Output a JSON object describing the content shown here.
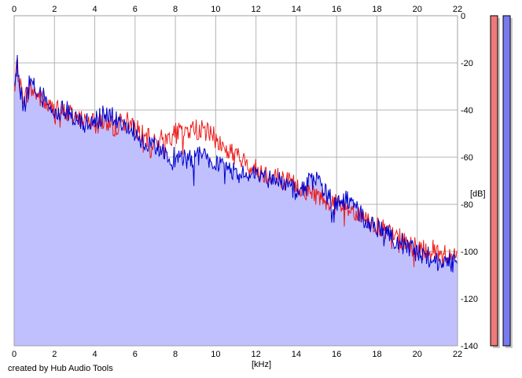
{
  "chart_data": {
    "type": "area",
    "xlabel": "[kHz]",
    "ylabel": "[dB]",
    "xlim": [
      0,
      22
    ],
    "ylim": [
      -140,
      0
    ],
    "x_ticks": [
      "0",
      "2",
      "4",
      "6",
      "8",
      "10",
      "12",
      "14",
      "16",
      "18",
      "20",
      "22"
    ],
    "y_ticks": [
      "0",
      "-20",
      "-40",
      "-60",
      "-80",
      "-100",
      "-120",
      "-140"
    ],
    "grid": true,
    "fill_series": "blue",
    "series": [
      {
        "color": "#ee1c1c",
        "x": [
          0,
          0.15,
          0.3,
          0.5,
          0.8,
          1.2,
          1.6,
          2.0,
          2.5,
          3.0,
          3.5,
          4.0,
          4.5,
          5.0,
          5.5,
          6.0,
          6.5,
          7.0,
          7.5,
          8.0,
          8.5,
          9.0,
          9.5,
          10.0,
          10.5,
          11.0,
          11.5,
          12.0,
          12.5,
          13.0,
          13.5,
          14.0,
          14.5,
          15.0,
          15.5,
          16.0,
          16.5,
          17.0,
          17.5,
          18.0,
          18.5,
          19.0,
          19.5,
          20.0,
          20.5,
          21.0,
          21.5,
          22.0
        ],
        "y": [
          -28,
          -22,
          -30,
          -35,
          -31,
          -34,
          -38,
          -40,
          -41,
          -42,
          -44,
          -43,
          -45,
          -47,
          -44,
          -47,
          -52,
          -53,
          -52,
          -50,
          -49,
          -48,
          -49,
          -52,
          -57,
          -59,
          -63,
          -65,
          -67,
          -68,
          -70,
          -72,
          -74,
          -76,
          -78,
          -80,
          -82,
          -85,
          -87,
          -89,
          -92,
          -94,
          -96,
          -98,
          -99,
          -100,
          -101,
          -102
        ]
      },
      {
        "color": "#0000cc",
        "x": [
          0,
          0.15,
          0.3,
          0.5,
          0.8,
          1.2,
          1.6,
          2.0,
          2.5,
          3.0,
          3.5,
          4.0,
          4.5,
          5.0,
          5.5,
          6.0,
          6.5,
          7.0,
          7.5,
          8.0,
          8.5,
          9.0,
          9.5,
          10.0,
          10.5,
          11.0,
          11.5,
          12.0,
          12.5,
          13.0,
          13.5,
          14.0,
          14.5,
          15.0,
          15.5,
          16.0,
          16.5,
          17.0,
          17.5,
          18.0,
          18.5,
          19.0,
          19.5,
          20.0,
          20.5,
          21.0,
          21.5,
          22.0
        ],
        "y": [
          -30,
          -20,
          -33,
          -38,
          -28,
          -33,
          -36,
          -42,
          -39,
          -44,
          -46,
          -45,
          -42,
          -43,
          -45,
          -49,
          -54,
          -56,
          -59,
          -60,
          -61,
          -60,
          -59,
          -62,
          -66,
          -67,
          -67,
          -66,
          -70,
          -69,
          -72,
          -75,
          -72,
          -68,
          -76,
          -79,
          -78,
          -83,
          -87,
          -90,
          -93,
          -95,
          -98,
          -100,
          -102,
          -104,
          -105,
          -104
        ]
      }
    ],
    "level_meters": [
      {
        "color": "#f07a7a",
        "level_db": 0
      },
      {
        "color": "#7a7af0",
        "level_db": 0
      }
    ]
  },
  "footer": {
    "credit": "created by Hub Audio Tools"
  },
  "colors": {
    "fill": "#c0c0ff",
    "grid": "#b4b4b4",
    "frame": "#a0a0a0"
  }
}
